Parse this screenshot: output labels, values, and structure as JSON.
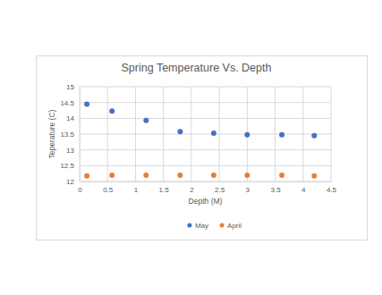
{
  "chart_data": {
    "type": "scatter",
    "title": "Spring Temperature Vs. Depth",
    "x_label": "Depth (M)",
    "y_label": "Teperature (C)",
    "x": [
      0.13,
      0.58,
      1.19,
      1.8,
      2.4,
      3.0,
      3.62,
      4.2
    ],
    "series": [
      {
        "name": "May",
        "color": "#4472c4",
        "marker": "circle",
        "values": [
          14.45,
          14.23,
          13.93,
          13.58,
          13.53,
          13.48,
          13.48,
          13.45
        ]
      },
      {
        "name": "April",
        "color": "#ed7d31",
        "marker": "circle",
        "values": [
          12.18,
          12.2,
          12.2,
          12.2,
          12.2,
          12.2,
          12.2,
          12.18
        ]
      }
    ],
    "xlim": [
      0,
      4.5
    ],
    "xticks": [
      0,
      0.5,
      1,
      1.5,
      2,
      2.5,
      3,
      3.5,
      4,
      4.5
    ],
    "ylim": [
      12,
      15
    ],
    "yticks": [
      12,
      12.5,
      13,
      13.5,
      14,
      14.5,
      15
    ],
    "grid": true,
    "legend": "bottom"
  }
}
